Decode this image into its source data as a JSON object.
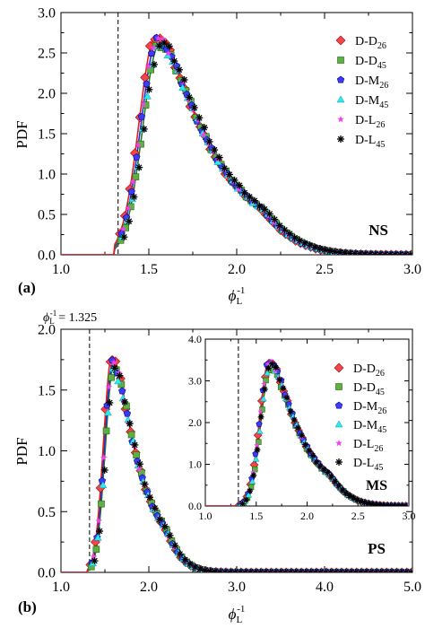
{
  "colors": {
    "D-D26": "#f0464a",
    "D-D45": "#5fae46",
    "D-M26": "#3c3cf0",
    "D-M45": "#30e8ee",
    "D-L26": "#f040f0",
    "D-L45": "#000000",
    "curve_red": "#e02020",
    "curve_blue": "#2a2ad8",
    "curve_green": "#1f7f1f"
  },
  "chart_data": [
    {
      "id": "a",
      "type": "scatter",
      "panel_label": "(a)",
      "annotation": "NS",
      "ylabel": "PDF",
      "xlabel": "ϕL-1",
      "xlim": [
        1.0,
        3.0
      ],
      "ylim": [
        0.0,
        3.0
      ],
      "xticks": [
        "1.0",
        "1.5",
        "2.0",
        "2.5",
        "3.0"
      ],
      "yticks": [
        "0.0",
        "0.5",
        "1.0",
        "1.5",
        "2.0",
        "2.5",
        "3.0"
      ],
      "vline_x": 1.325,
      "legend_position": "top-right",
      "series": [
        {
          "name": "D-D26",
          "base": "D-D",
          "sub": "26",
          "marker": "diamond",
          "peak_x": 1.54,
          "peak_y": 2.72
        },
        {
          "name": "D-D45",
          "base": "D-D",
          "sub": "45",
          "marker": "square",
          "peak_x": 1.56,
          "peak_y": 2.6
        },
        {
          "name": "D-M26",
          "base": "D-M",
          "sub": "26",
          "marker": "pentagon",
          "peak_x": 1.55,
          "peak_y": 2.66
        },
        {
          "name": "D-M45",
          "base": "D-M",
          "sub": "45",
          "marker": "triangle",
          "peak_x": 1.56,
          "peak_y": 2.58
        },
        {
          "name": "D-L26",
          "base": "D-L",
          "sub": "26",
          "marker": "star",
          "peak_x": 1.55,
          "peak_y": 2.68
        },
        {
          "name": "D-L45",
          "base": "D-L",
          "sub": "45",
          "marker": "asterisk",
          "peak_x": 1.57,
          "peak_y": 2.62
        }
      ]
    },
    {
      "id": "b",
      "type": "scatter",
      "panel_label": "(b)",
      "annotation": "PS",
      "ylabel": "PDF",
      "xlabel": "ϕL-1",
      "xlim": [
        1.0,
        5.0
      ],
      "ylim": [
        0.0,
        2.0
      ],
      "xticks": [
        "1.0",
        "2.0",
        "3.0",
        "4.0",
        "5.0"
      ],
      "yticks": [
        "0.0",
        "0.5",
        "1.0",
        "1.5",
        "2.0"
      ],
      "vline_x": 1.325,
      "vline_label": "= 1.325",
      "series": [
        {
          "name": "D-D26",
          "marker": "diamond",
          "peak_x": 1.58,
          "peak_y": 1.78
        },
        {
          "name": "D-D45",
          "marker": "square",
          "peak_x": 1.6,
          "peak_y": 1.7
        },
        {
          "name": "D-M26",
          "marker": "pentagon",
          "peak_x": 1.59,
          "peak_y": 1.72
        },
        {
          "name": "D-M45",
          "marker": "triangle",
          "peak_x": 1.6,
          "peak_y": 1.66
        },
        {
          "name": "D-L26",
          "marker": "star",
          "peak_x": 1.59,
          "peak_y": 1.72
        },
        {
          "name": "D-L45",
          "marker": "asterisk",
          "peak_x": 1.61,
          "peak_y": 1.68
        }
      ]
    },
    {
      "id": "b-inset",
      "type": "scatter",
      "annotation": "MS",
      "xlim": [
        1.0,
        3.0
      ],
      "ylim": [
        0.0,
        4.0
      ],
      "xticks": [
        "1.0",
        "1.5",
        "2.0",
        "2.5",
        "3.0"
      ],
      "yticks": [
        "0.0",
        "1.0",
        "2.0",
        "3.0",
        "4.0"
      ],
      "vline_x": 1.325,
      "legend_position": "top-right",
      "series": [
        {
          "name": "D-D26",
          "base": "D-D",
          "sub": "26",
          "marker": "diamond",
          "peak_x": 1.63,
          "peak_y": 3.45
        },
        {
          "name": "D-D45",
          "base": "D-D",
          "sub": "45",
          "marker": "square",
          "peak_x": 1.64,
          "peak_y": 3.3
        },
        {
          "name": "D-M26",
          "base": "D-M",
          "sub": "26",
          "marker": "pentagon",
          "peak_x": 1.63,
          "peak_y": 3.5
        },
        {
          "name": "D-M45",
          "base": "D-M",
          "sub": "45",
          "marker": "triangle",
          "peak_x": 1.64,
          "peak_y": 3.35
        },
        {
          "name": "D-L26",
          "base": "D-L",
          "sub": "26",
          "marker": "star",
          "peak_x": 1.63,
          "peak_y": 3.45
        },
        {
          "name": "D-L45",
          "base": "D-L",
          "sub": "45",
          "marker": "asterisk",
          "peak_x": 1.64,
          "peak_y": 3.4
        }
      ]
    }
  ]
}
